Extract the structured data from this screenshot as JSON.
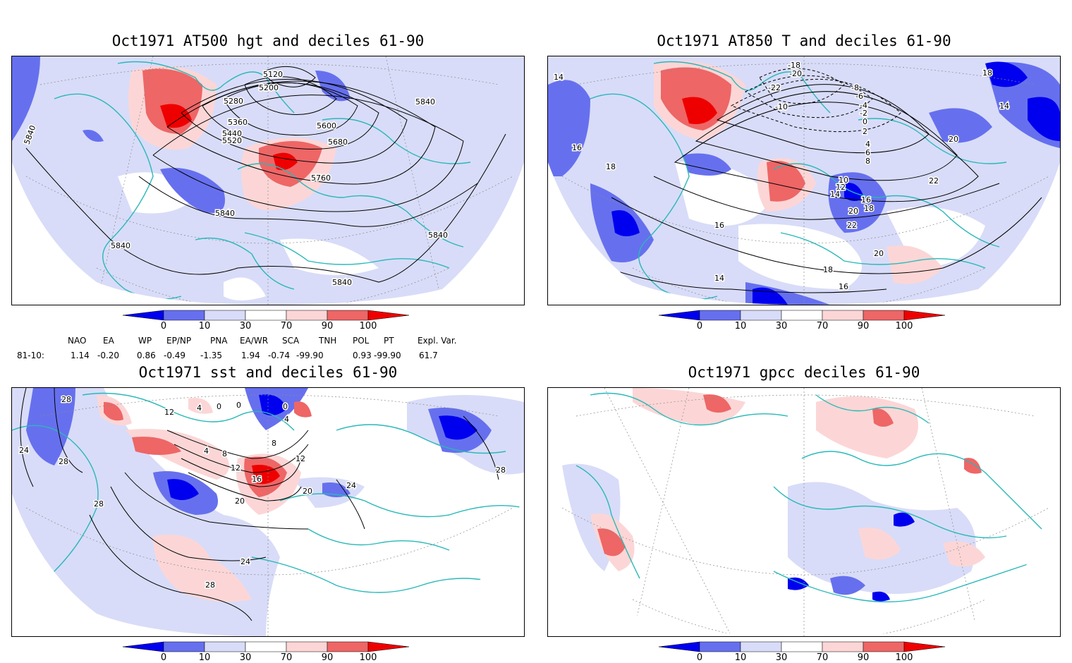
{
  "panels": [
    {
      "title": "Oct1971 AT500 hgt and deciles 61-90",
      "contour_labels": [
        "5120",
        "5200",
        "5280",
        "5360",
        "5440",
        "5520",
        "5600",
        "5680",
        "5760",
        "5840",
        "5840",
        "5840",
        "5840",
        "5840",
        "5840"
      ]
    },
    {
      "title": "Oct1971 AT850 T and deciles 61-90",
      "contour_labels": [
        "-18",
        "-20",
        "-22",
        "-10",
        "-8",
        "-6",
        "-4",
        "-2",
        "0",
        "2",
        "4",
        "6",
        "8",
        "10",
        "12",
        "14",
        "16",
        "18",
        "20",
        "22",
        "14",
        "16",
        "18",
        "20",
        "22",
        "18",
        "16",
        "14",
        "16",
        "18",
        "20",
        "16",
        "14"
      ]
    },
    {
      "title": "Oct1971 sst and deciles 61-90",
      "contour_labels": [
        "28",
        "24",
        "28",
        "28",
        "12",
        "4",
        "0",
        "4",
        "8",
        "12",
        "16",
        "20",
        "24",
        "20",
        "24",
        "28",
        "0",
        "4",
        "0",
        "12",
        "8",
        "16",
        "28"
      ]
    },
    {
      "title": "Oct1971 gpcc deciles 61-90",
      "contour_labels": []
    }
  ],
  "colorbar": {
    "tick_labels": [
      "0",
      "10",
      "30",
      "70",
      "90",
      "100"
    ],
    "colors": [
      "#0000ee",
      "#6670ee",
      "#d8dcf8",
      "#ffffff",
      "#fcd6d6",
      "#ee6666",
      "#ee0000"
    ]
  },
  "indices": {
    "headers": [
      "NAO",
      "EA",
      "WP",
      "EP/NP",
      "PNA",
      "EA/WR",
      "SCA",
      "TNH",
      "POL",
      "PT",
      "Expl. Var."
    ],
    "row_label": "81-10:",
    "values": [
      "1.14",
      "-0.20",
      "0.86",
      "-0.49",
      "-1.35",
      "1.94",
      "-0.74",
      "-99.90",
      "0.93",
      "-99.90",
      "61.7"
    ]
  },
  "colors": {
    "coast": "#2ab8b8",
    "grid": "#8a8a8a",
    "red_strong": "#ee0000",
    "blue_strong": "#0000ee"
  }
}
